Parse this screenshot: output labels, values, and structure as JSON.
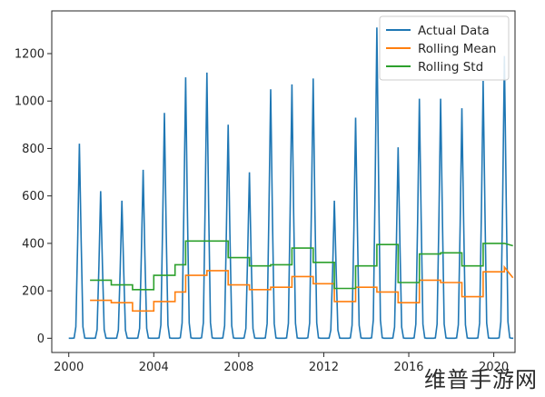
{
  "chart_data": {
    "type": "line",
    "title": "",
    "xlabel": "",
    "ylabel": "",
    "xlim": [
      1999.2,
      2021.0
    ],
    "ylim": [
      -60,
      1380
    ],
    "x_ticks": [
      2000,
      2004,
      2008,
      2012,
      2016,
      2020
    ],
    "x_tick_labels": [
      "2000",
      "2004",
      "2008",
      "2012",
      "2016",
      "2020"
    ],
    "y_ticks": [
      0,
      200,
      400,
      600,
      800,
      1000,
      1200
    ],
    "y_tick_labels": [
      "0",
      "200",
      "400",
      "600",
      "800",
      "1000",
      "1200"
    ],
    "grid": false,
    "legend_position": "top-right",
    "colors": {
      "actual": "#1f77b4",
      "mean": "#ff7f0e",
      "std": "#2ca02c"
    },
    "peak_data": {
      "name": "Actual Data",
      "peaks": [
        [
          2000.5,
          820
        ],
        [
          2001.5,
          620
        ],
        [
          2002.5,
          580
        ],
        [
          2003.5,
          710
        ],
        [
          2004.5,
          950
        ],
        [
          2005.5,
          1100
        ],
        [
          2006.5,
          1120
        ],
        [
          2007.5,
          900
        ],
        [
          2008.5,
          700
        ],
        [
          2009.5,
          1050
        ],
        [
          2010.5,
          1070
        ],
        [
          2011.5,
          1095
        ],
        [
          2012.5,
          580
        ],
        [
          2013.5,
          930
        ],
        [
          2014.5,
          1310
        ],
        [
          2015.5,
          805
        ],
        [
          2016.5,
          1010
        ],
        [
          2017.5,
          1010
        ],
        [
          2018.5,
          970
        ],
        [
          2019.5,
          1085
        ],
        [
          2020.5,
          1190
        ]
      ]
    },
    "series": [
      {
        "name": "Rolling Mean",
        "x": [
          2001.0,
          2002.0,
          2002.0,
          2003.0,
          2003.0,
          2004.0,
          2004.0,
          2005.0,
          2005.0,
          2005.5,
          2005.5,
          2006.5,
          2006.5,
          2007.5,
          2007.5,
          2008.5,
          2008.5,
          2009.5,
          2009.5,
          2010.5,
          2010.5,
          2011.5,
          2011.5,
          2012.5,
          2012.5,
          2013.5,
          2013.5,
          2014.5,
          2014.5,
          2015.5,
          2015.5,
          2016.5,
          2016.5,
          2017.5,
          2017.5,
          2018.5,
          2018.5,
          2019.5,
          2019.5,
          2020.5,
          2020.5,
          2020.9
        ],
        "y": [
          160,
          160,
          150,
          150,
          115,
          115,
          155,
          155,
          195,
          195,
          265,
          265,
          285,
          285,
          225,
          225,
          205,
          205,
          215,
          215,
          260,
          260,
          230,
          230,
          155,
          155,
          215,
          215,
          195,
          195,
          150,
          150,
          245,
          245,
          235,
          235,
          175,
          175,
          280,
          280,
          300,
          255
        ]
      },
      {
        "name": "Rolling Std",
        "x": [
          2001.0,
          2002.0,
          2002.0,
          2003.0,
          2003.0,
          2004.0,
          2004.0,
          2005.0,
          2005.0,
          2005.5,
          2005.5,
          2006.5,
          2006.5,
          2007.5,
          2007.5,
          2008.5,
          2008.5,
          2009.5,
          2009.5,
          2010.5,
          2010.5,
          2011.5,
          2011.5,
          2012.5,
          2012.5,
          2013.5,
          2013.5,
          2014.5,
          2014.5,
          2015.5,
          2015.5,
          2016.5,
          2016.5,
          2017.5,
          2017.5,
          2018.5,
          2018.5,
          2019.5,
          2019.5,
          2020.5,
          2020.5,
          2020.9
        ],
        "y": [
          245,
          245,
          225,
          225,
          205,
          205,
          265,
          265,
          310,
          310,
          410,
          410,
          410,
          410,
          340,
          340,
          305,
          305,
          310,
          310,
          380,
          380,
          320,
          320,
          210,
          210,
          305,
          305,
          395,
          395,
          235,
          235,
          355,
          355,
          360,
          360,
          305,
          305,
          400,
          400,
          400,
          390
        ]
      }
    ]
  }
}
